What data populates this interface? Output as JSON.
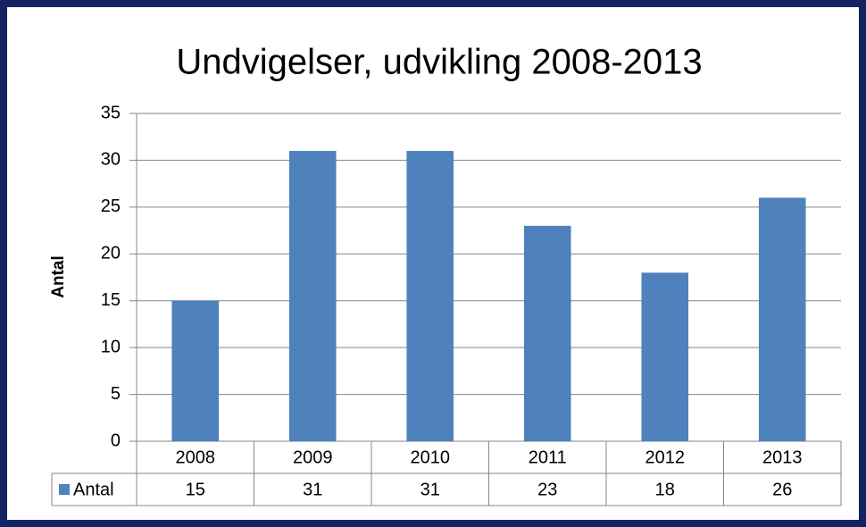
{
  "chart_data": {
    "type": "bar",
    "title": "Undvigelser, udvikling 2008-2013",
    "y_label": "Antal",
    "categories": [
      "2008",
      "2009",
      "2010",
      "2011",
      "2012",
      "2013"
    ],
    "series": [
      {
        "name": "Antal",
        "color": "#4f81bd",
        "values": [
          15,
          31,
          31,
          23,
          18,
          26
        ]
      }
    ],
    "ylim": [
      0,
      35
    ],
    "yticks": [
      0,
      5,
      10,
      15,
      20,
      25,
      30,
      35
    ],
    "grid": true,
    "data_table": true
  }
}
